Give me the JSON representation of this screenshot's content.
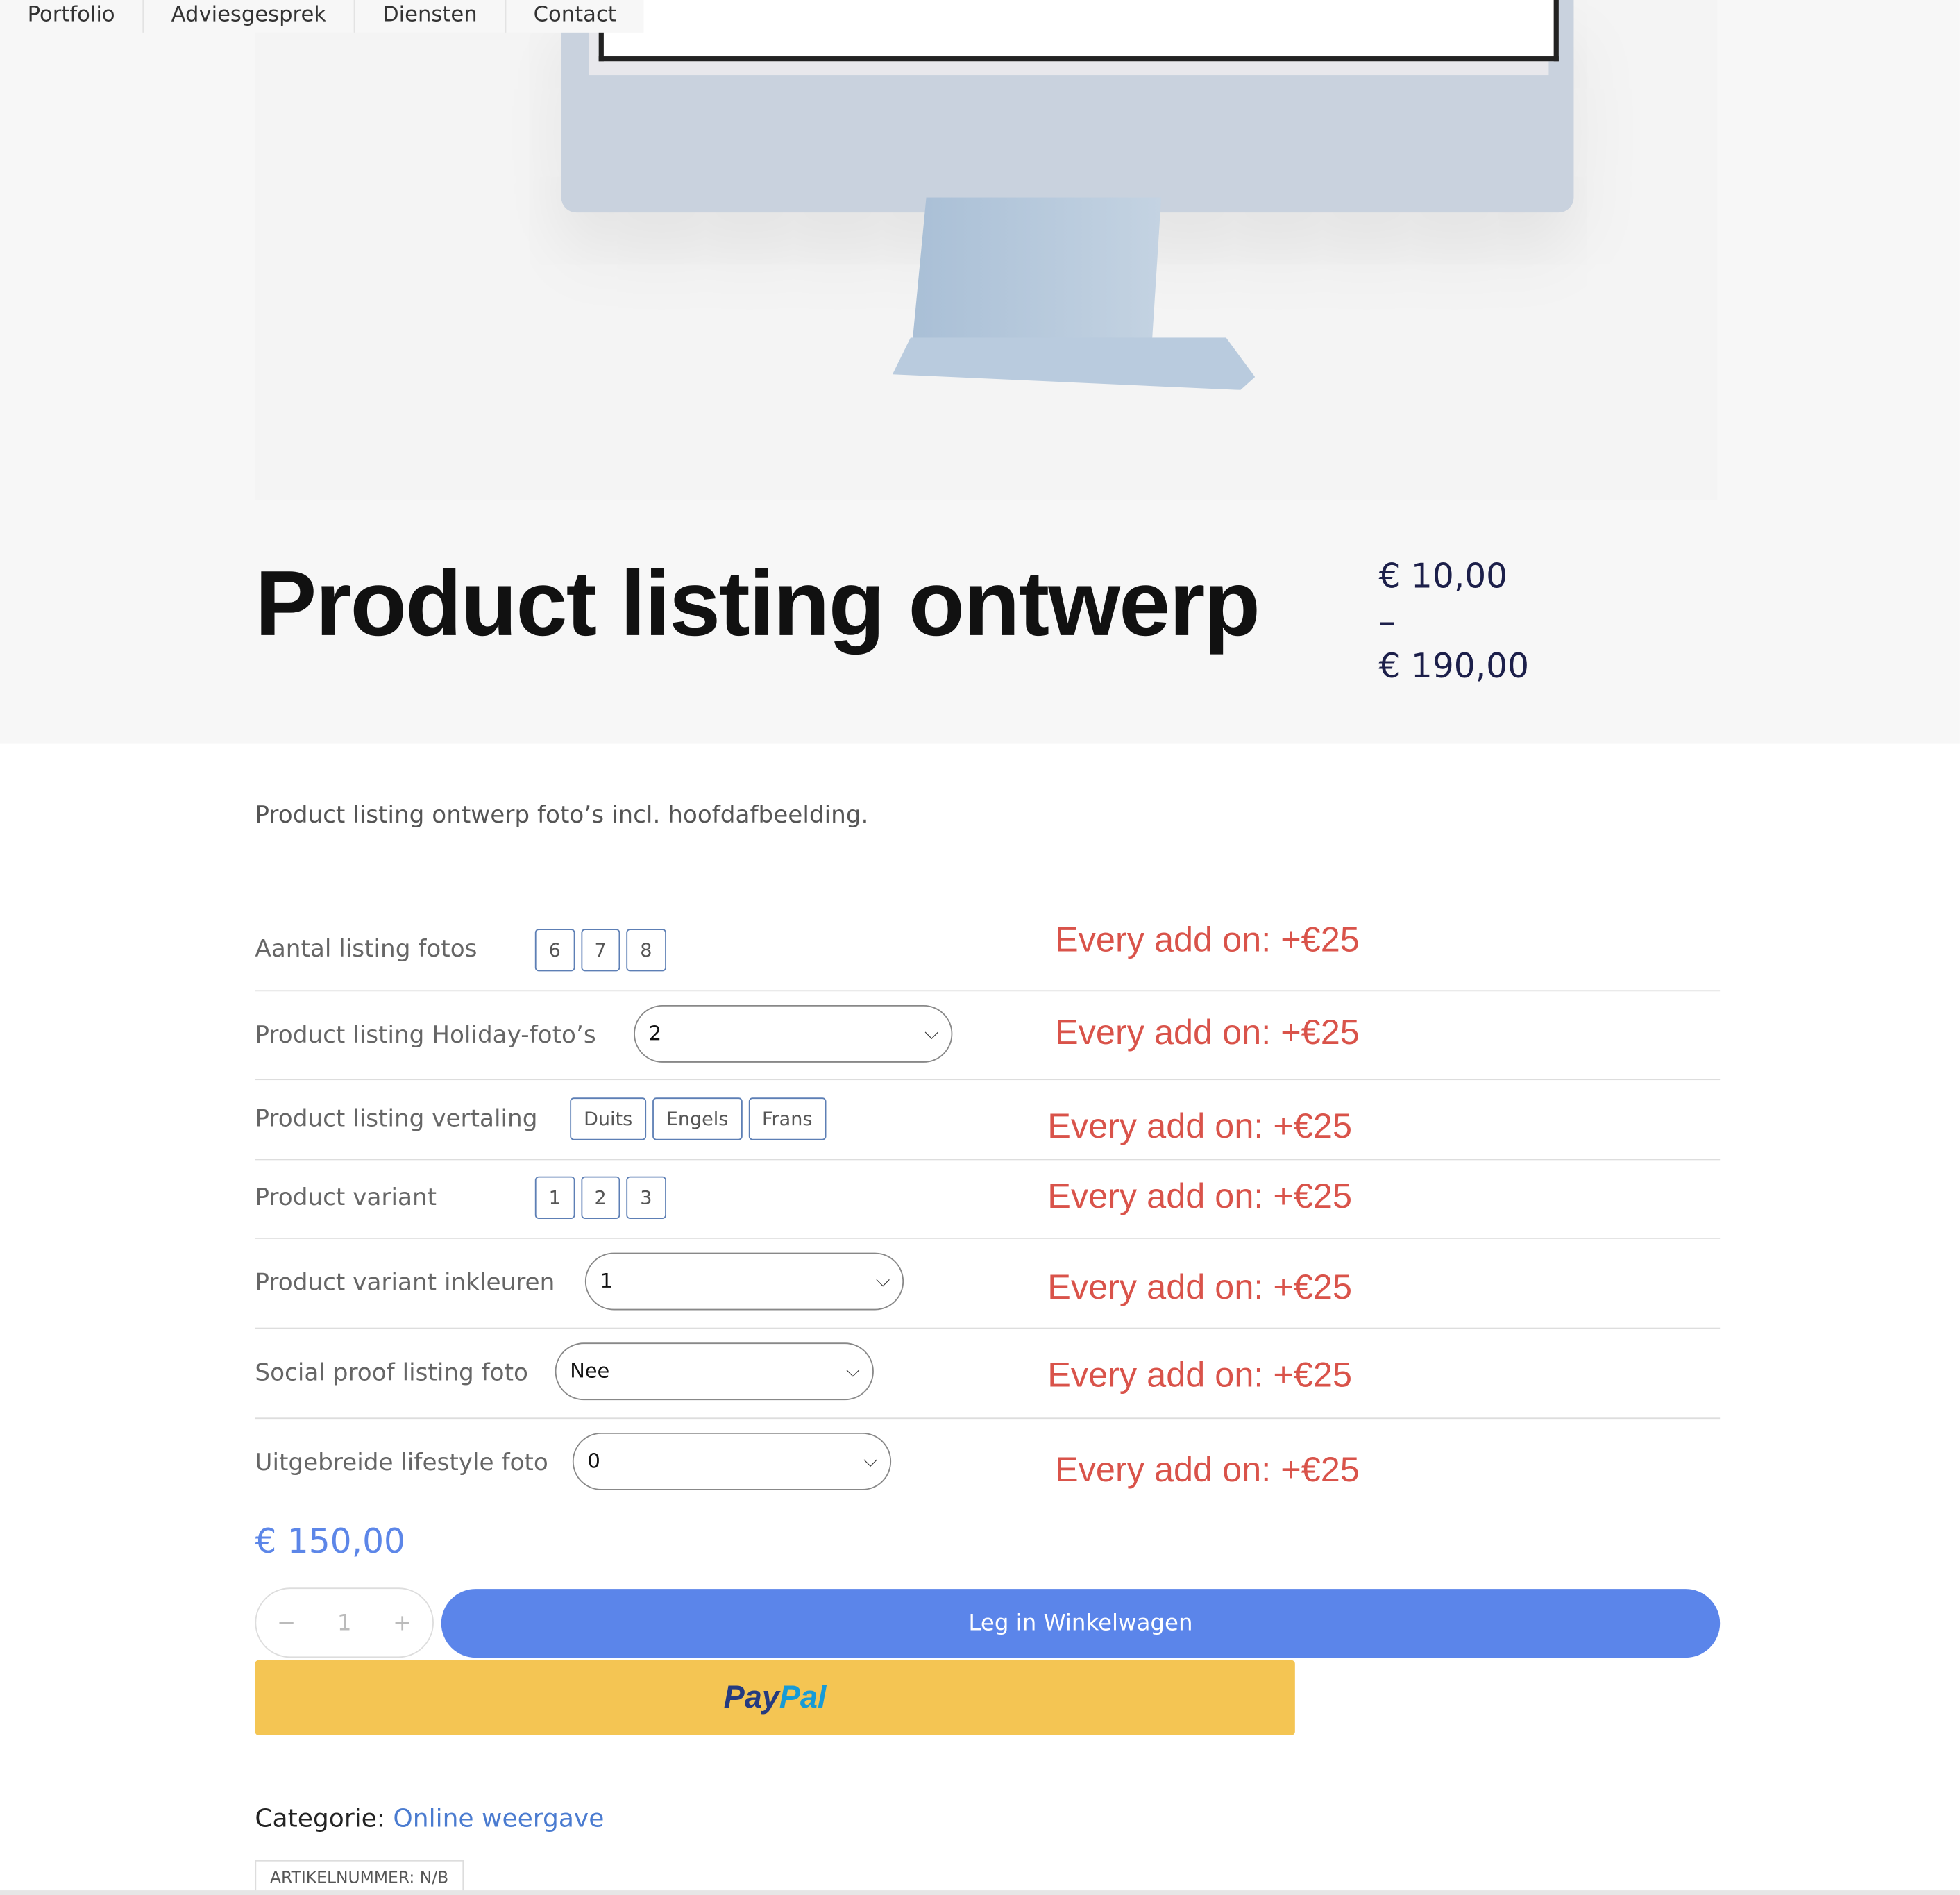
{
  "nav": [
    "Portfolio",
    "Adviesgesprek",
    "Diensten",
    "Contact"
  ],
  "product": {
    "title": "Product listing ontwerp",
    "price_min": "€ 10,00",
    "price_sep": "–",
    "price_max": "€ 190,00",
    "description": "Product listing ontwerp foto’s incl. hoofdafbeelding."
  },
  "options": [
    {
      "label": "Aantal listing fotos",
      "type": "swatch",
      "values": [
        "6",
        "7",
        "8"
      ],
      "note": "Every add on: +€25"
    },
    {
      "label": "Product listing Holiday-foto’s",
      "type": "select",
      "value": "2",
      "note": "Every add on: +€25"
    },
    {
      "label": "Product listing vertaling",
      "type": "swatch",
      "values": [
        "Duits",
        "Engels",
        "Frans"
      ],
      "note": "Every add on: +€25"
    },
    {
      "label": "Product variant",
      "type": "swatch",
      "values": [
        "1",
        "2",
        "3"
      ],
      "note": "Every add on: +€25"
    },
    {
      "label": "Product variant inkleuren",
      "type": "select",
      "value": "1",
      "note": "Every add on: +€25"
    },
    {
      "label": "Social proof listing foto",
      "type": "select",
      "value": "Nee",
      "note": "Every add on: +€25"
    },
    {
      "label": "Uitgebreide lifestyle foto",
      "type": "select",
      "value": "0",
      "note": "Every add on: +€25"
    }
  ],
  "total": "€ 150,00",
  "quantity": {
    "minus": "−",
    "value": "1",
    "plus": "+"
  },
  "cart_button": "Leg in Winkelwagen",
  "paypal": {
    "pay": "Pay",
    "pal": "Pal"
  },
  "category": {
    "label": "Categorie: ",
    "link": "Online weergave"
  },
  "sku": "ARTIKELNUMMER: N/B",
  "colors": {
    "accent": "#5b85ea",
    "addon": "#d9534a",
    "paypal": "#f4c553"
  }
}
